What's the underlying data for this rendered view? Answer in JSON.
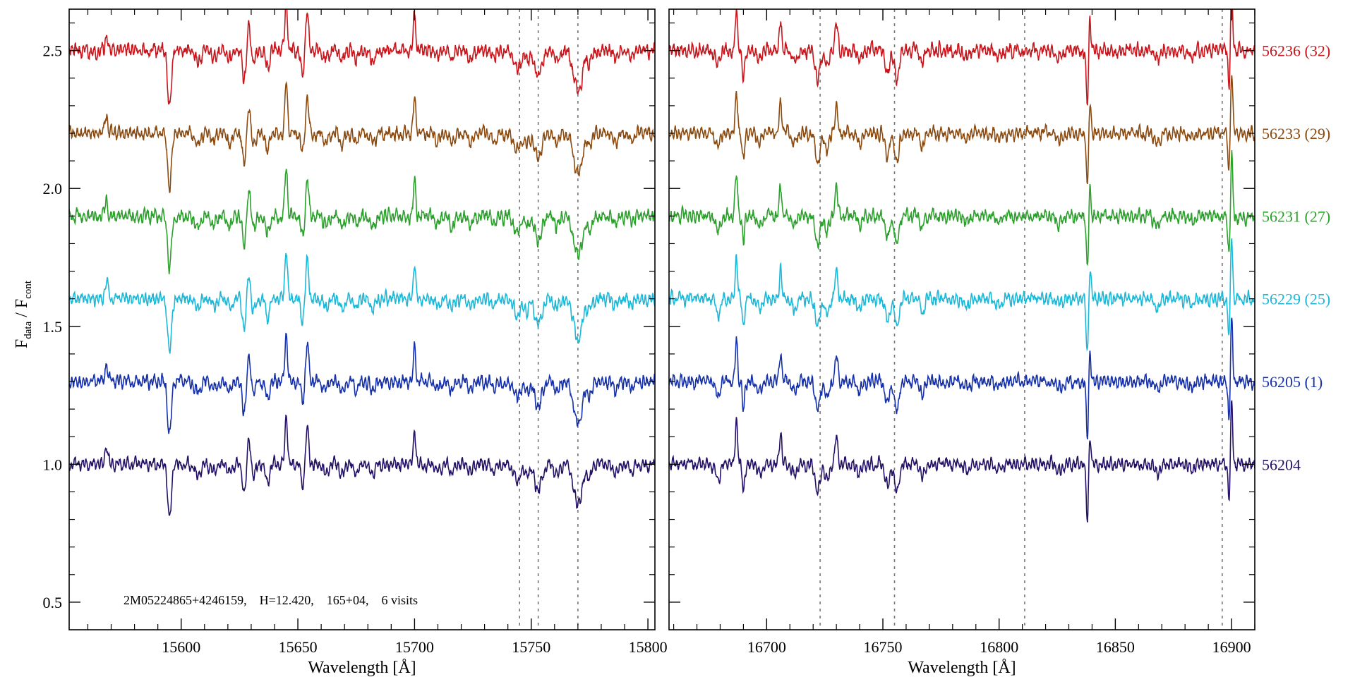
{
  "chart_data": {
    "type": "line",
    "ylabel": {
      "main": "F",
      "sub1": "data",
      "sep": " / F",
      "sub2": "cont"
    },
    "ylim": [
      0.4,
      2.65
    ],
    "y_ticks": [
      "0.5",
      "1.0",
      "1.5",
      "2.0",
      "2.5"
    ],
    "annotation": "2M05224865+4246159,    H=12.420,    165+04,    6 visits",
    "panels": [
      {
        "xlabel": "Wavelength [Å]",
        "xlim": [
          15552,
          15803
        ],
        "x_ticks": [
          "15600",
          "15650",
          "15700",
          "15750",
          "15800"
        ],
        "lines": [
          15745,
          15753,
          15770
        ],
        "features": [
          [
            15568,
            0.55,
            0.6
          ],
          [
            15595,
            -1.8,
            0.8
          ],
          [
            15607,
            -0.35,
            1.2
          ],
          [
            15614,
            -0.25,
            1.0
          ],
          [
            15621,
            -0.3,
            1.0
          ],
          [
            15627,
            -1.0,
            0.8
          ],
          [
            15629,
            0.9,
            0.7
          ],
          [
            15631,
            -0.35,
            1.0
          ],
          [
            15637,
            -0.6,
            0.8
          ],
          [
            15645,
            1.6,
            0.55
          ],
          [
            15652,
            -0.7,
            0.7
          ],
          [
            15654,
            1.3,
            0.6
          ],
          [
            15662,
            -0.3,
            1.0
          ],
          [
            15669,
            -0.35,
            1.0
          ],
          [
            15675,
            -0.25,
            1.0
          ],
          [
            15682,
            -0.3,
            1.2
          ],
          [
            15700,
            1.15,
            0.5
          ],
          [
            15710,
            -0.25,
            1.0
          ],
          [
            15716,
            -0.3,
            1.0
          ],
          [
            15724,
            -0.3,
            1.0
          ],
          [
            15734,
            -0.25,
            1.0
          ],
          [
            15744,
            -0.55,
            1.4
          ],
          [
            15748,
            -0.35,
            1.0
          ],
          [
            15753,
            -0.8,
            1.6
          ],
          [
            15761,
            -0.3,
            1.2
          ],
          [
            15770,
            -1.35,
            1.8
          ],
          [
            15775,
            -0.35,
            1.2
          ],
          [
            15786,
            -0.25,
            1.0
          ],
          [
            15793,
            -0.2,
            1.0
          ]
        ]
      },
      {
        "xlabel": "Wavelength [Å]",
        "xlim": [
          16658,
          16910
        ],
        "x_ticks": [
          "16700",
          "16750",
          "16800",
          "16850",
          "16900"
        ],
        "lines": [
          16723,
          16755,
          16811,
          16896
        ],
        "features": [
          [
            16679,
            -0.5,
            0.9
          ],
          [
            16687,
            1.4,
            0.5
          ],
          [
            16690,
            -0.9,
            0.5
          ],
          [
            16697,
            -0.35,
            1.0
          ],
          [
            16706,
            1.0,
            0.5
          ],
          [
            16712,
            -0.35,
            1.0
          ],
          [
            16722,
            -0.95,
            1.0
          ],
          [
            16726,
            -0.55,
            0.9
          ],
          [
            16730,
            0.9,
            0.6
          ],
          [
            16740,
            -0.3,
            1.0
          ],
          [
            16752,
            -0.75,
            0.9
          ],
          [
            16756,
            -1.0,
            0.9
          ],
          [
            16767,
            -0.5,
            0.7
          ],
          [
            16786,
            -0.2,
            1.2
          ],
          [
            16800,
            -0.2,
            1.2
          ],
          [
            16826,
            -0.2,
            1.2
          ],
          [
            16838,
            -1.9,
            0.5
          ],
          [
            16839,
            1.2,
            0.45
          ],
          [
            16868,
            -0.3,
            1.2
          ],
          [
            16883,
            -0.2,
            1.2
          ],
          [
            16899,
            -1.3,
            0.5
          ],
          [
            16900,
            2.2,
            0.45
          ]
        ]
      }
    ],
    "series": [
      {
        "name": "56204",
        "offset": 1.0,
        "color": "#241166",
        "strength": 0.11,
        "noise": 0.018,
        "seed": 11
      },
      {
        "name": "56205 (1)",
        "offset": 1.3,
        "color": "#1530a8",
        "strength": 0.11,
        "noise": 0.02,
        "seed": 23
      },
      {
        "name": "56229 (25)",
        "offset": 1.6,
        "color": "#1bb8d8",
        "strength": 0.11,
        "noise": 0.02,
        "seed": 37
      },
      {
        "name": "56231 (27)",
        "offset": 1.9,
        "color": "#2ca02c",
        "strength": 0.11,
        "noise": 0.022,
        "seed": 41
      },
      {
        "name": "56233 (29)",
        "offset": 2.2,
        "color": "#8b4a0f",
        "strength": 0.11,
        "noise": 0.02,
        "seed": 53
      },
      {
        "name": "56236 (32)",
        "offset": 2.5,
        "color": "#c8161d",
        "strength": 0.11,
        "noise": 0.024,
        "seed": 67
      }
    ]
  }
}
